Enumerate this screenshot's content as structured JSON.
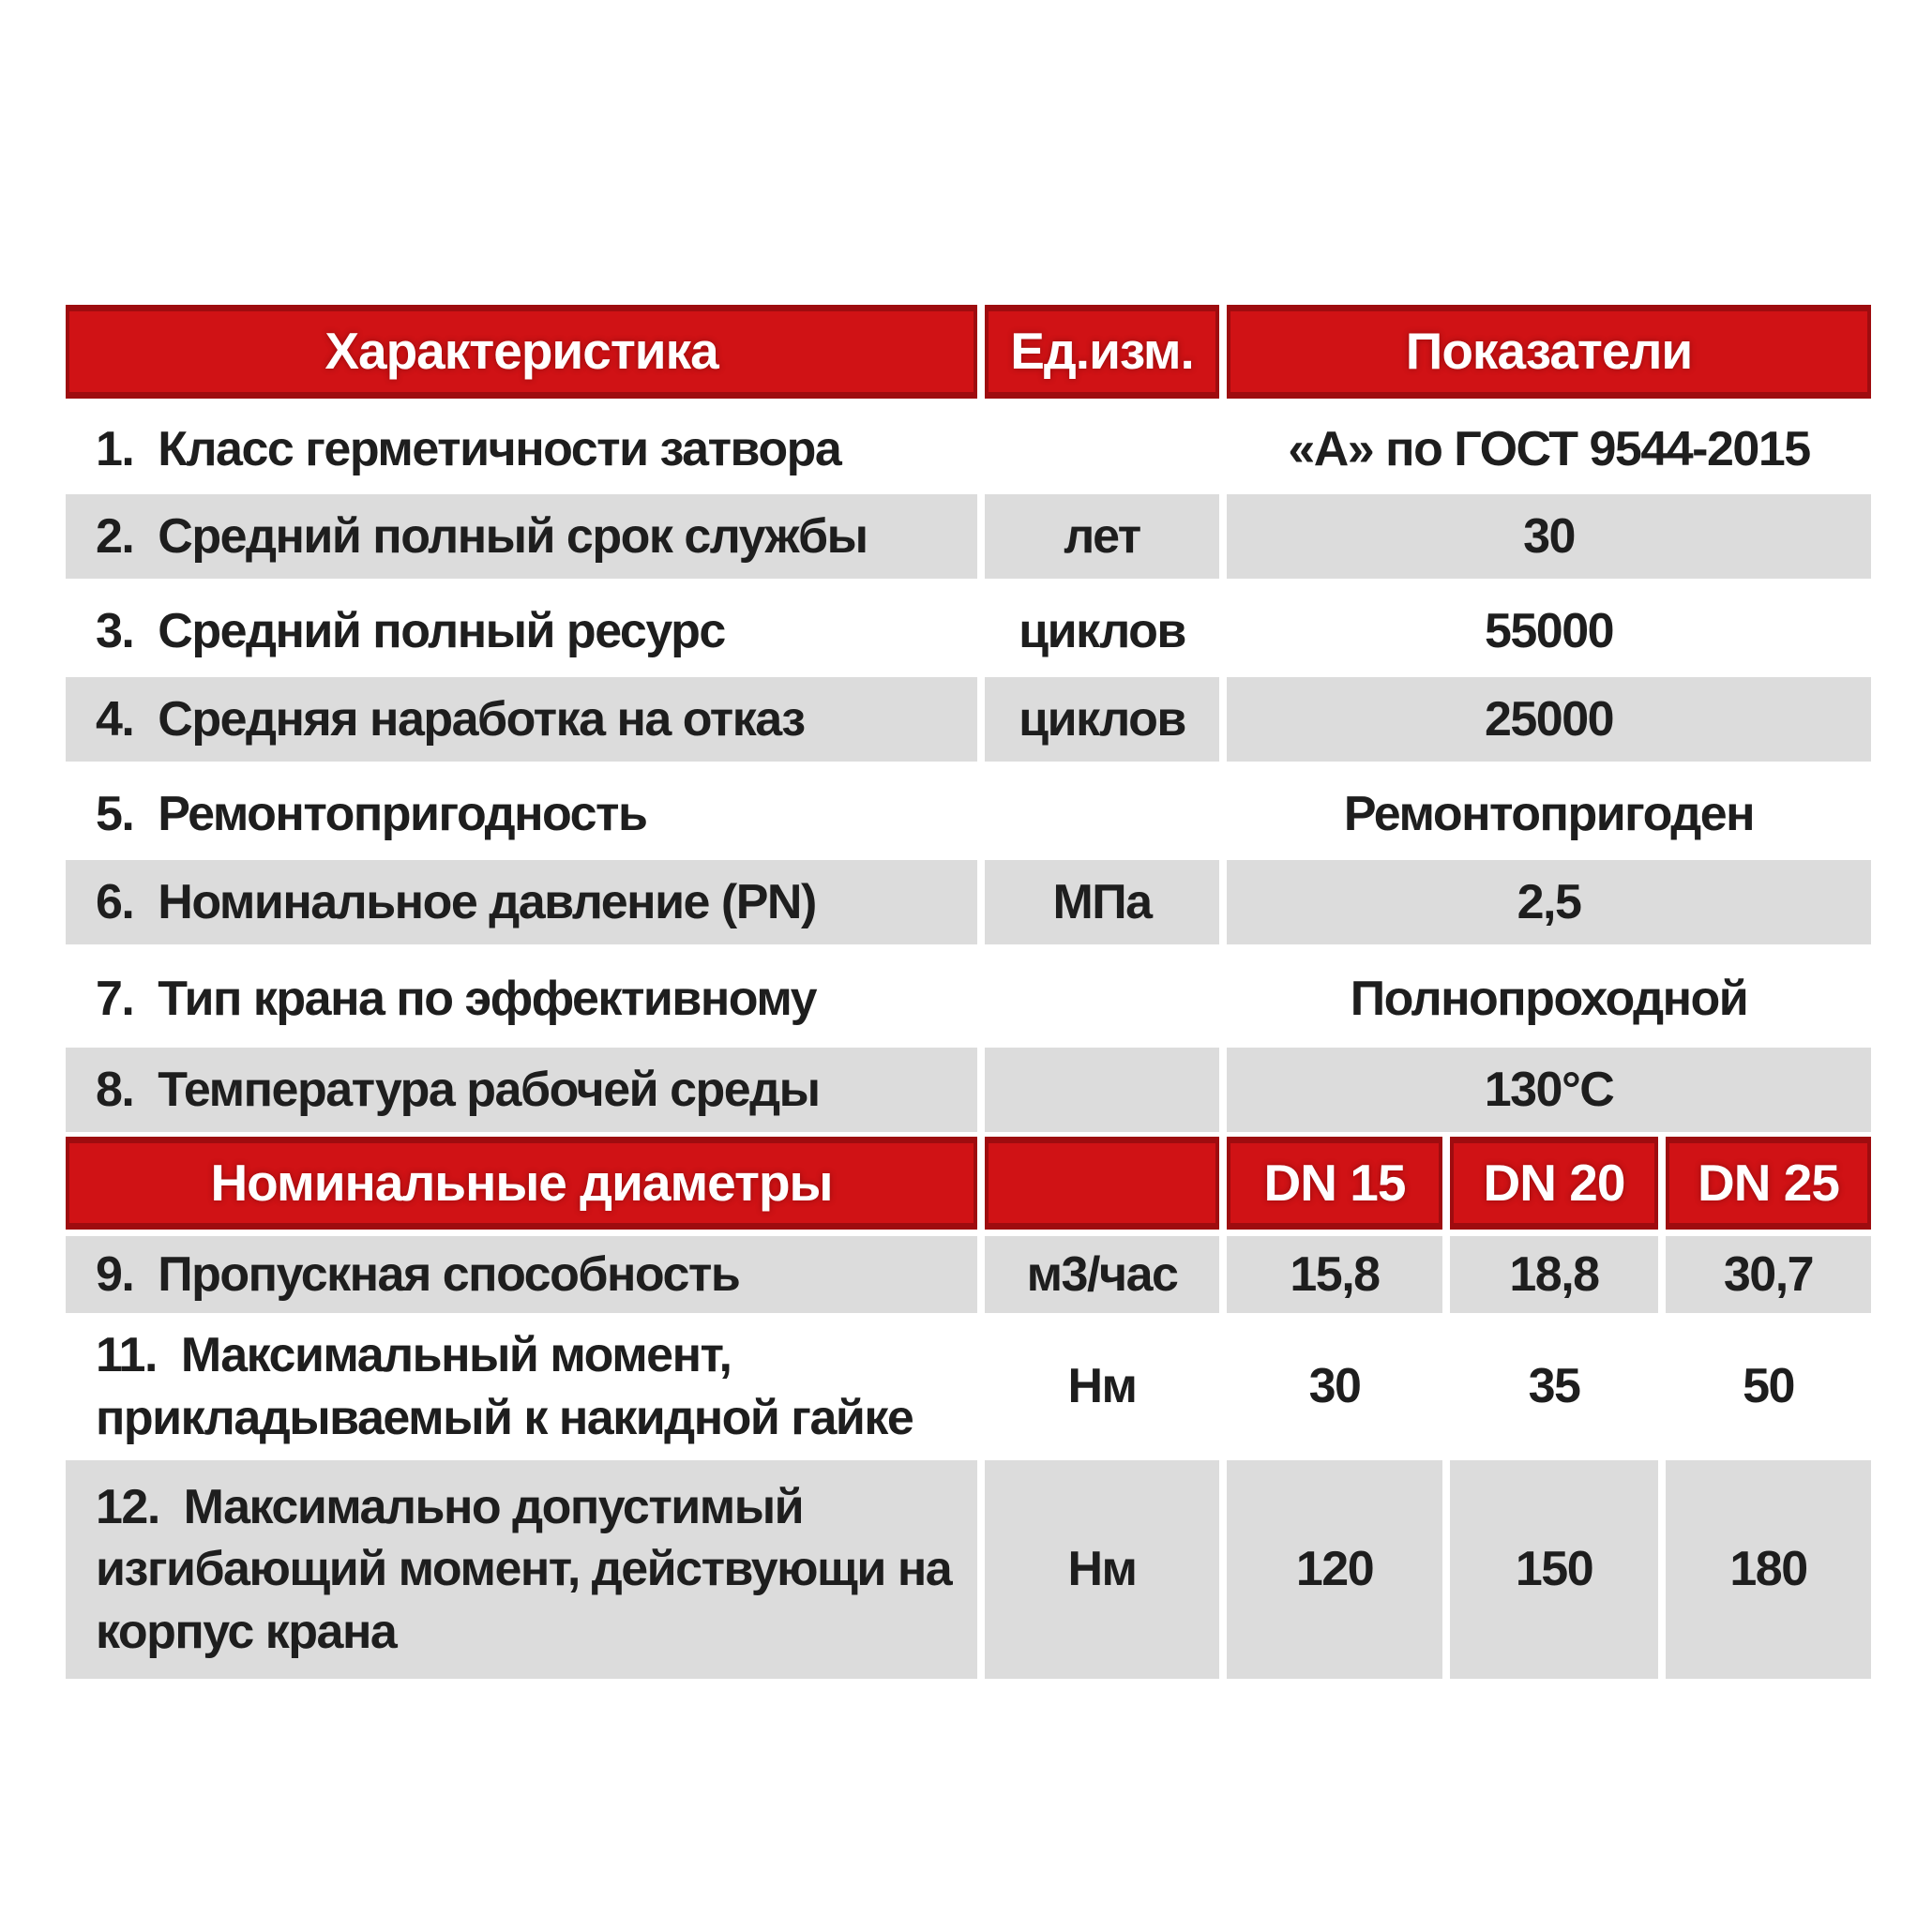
{
  "colors": {
    "header_red": "#d01215",
    "header_red_dark": "#9e0c0f",
    "row_gray": "#dcdcdc",
    "text_dark": "#1e1e1e",
    "header_text": "#ffffff"
  },
  "table": {
    "header1": {
      "characteristic": "Характеристика",
      "unit": "Ед.изм.",
      "indicators": "Показатели"
    },
    "rows": [
      {
        "label": "1.  Класс герметичности затвора",
        "unit": "",
        "value": "«А» по ГОСТ 9544-2015"
      },
      {
        "label": "2.  Средний полный срок службы",
        "unit": "лет",
        "value": "30"
      },
      {
        "label": "3.  Средний полный ресурс",
        "unit": "циклов",
        "value": "55000"
      },
      {
        "label": "4.  Средняя наработка на отказ",
        "unit": "циклов",
        "value": "25000"
      },
      {
        "label": "5.  Ремонтопригодность",
        "unit": "",
        "value": "Ремонтопригоден"
      },
      {
        "label": "6.  Номинальное давление (PN)",
        "unit": "МПа",
        "value": "2,5"
      },
      {
        "label": "7.  Тип крана по эффективному",
        "unit": "",
        "value": "Полнопроходной"
      },
      {
        "label": "8.  Температура рабочей среды",
        "unit": "",
        "value": "130°C"
      }
    ],
    "header2": {
      "title": "Номинальные диаметры",
      "dn_columns": [
        "DN 15",
        "DN 20",
        "DN 25"
      ]
    },
    "dn_rows": [
      {
        "label": "9.  Пропускная способность",
        "unit": "м3/час",
        "values": [
          "15,8",
          "18,8",
          "30,7"
        ]
      },
      {
        "label": "11.  Максимальный момент,\nприкладываемый к накидной гайке",
        "unit": "Нм",
        "values": [
          "30",
          "35",
          "50"
        ]
      },
      {
        "label": "12.  Максимально допустимый\nизгибающий момент, действующи на\nкорпус крана",
        "unit": "Нм",
        "values": [
          "120",
          "150",
          "180"
        ]
      }
    ]
  }
}
